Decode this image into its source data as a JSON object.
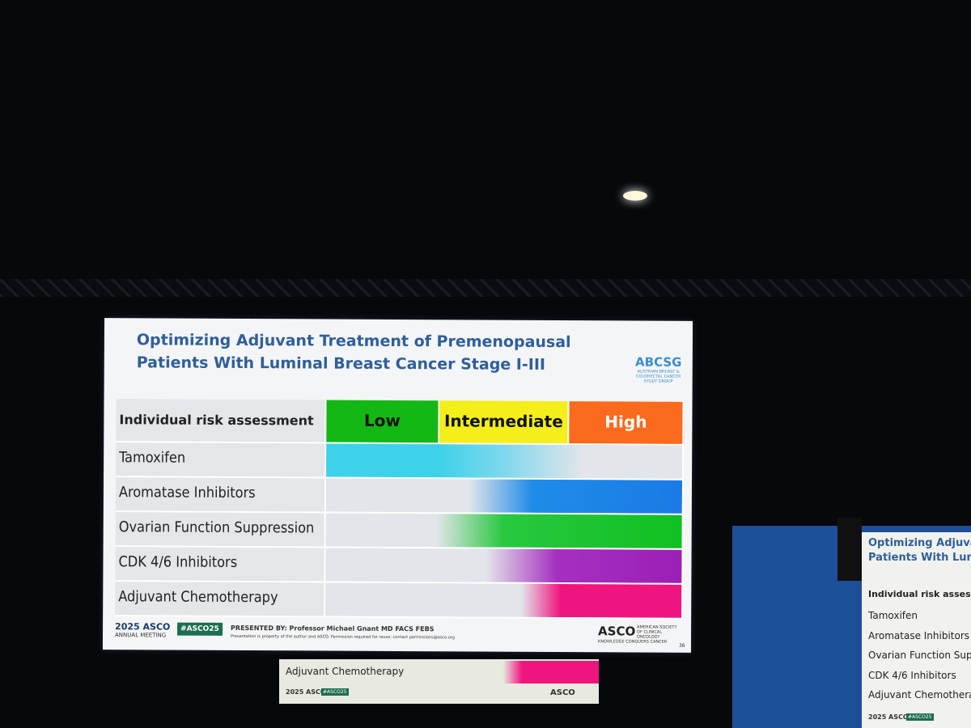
{
  "slide": {
    "title": [
      "Optimizing Adjuvant Treatment of Premenopausal",
      "Patients With Luminal Breast Cancer Stage I-III"
    ],
    "logo": "ABCSG",
    "logo_subtitle": "AUSTRIAN BREAST & COLORECTAL CANCER STUDY GROUP",
    "table": {
      "header": [
        "Individual risk assessment",
        "Low",
        "Intermediate",
        "High"
      ],
      "rows": [
        "Tamoxifen",
        "Aromatase Inhibitors",
        "Ovarian Function Suppression",
        "CDK 4/6 Inhibitors",
        "Adjuvant Chemotherapy"
      ]
    },
    "footer": {
      "meeting": "2025 ASCO",
      "meeting_sub": "ANNUAL MEETING",
      "hashtag": "#ASCO25",
      "presenter": "PRESENTED BY:  Professor Michael Gnant MD FACS FEBS",
      "notice": "Presentation is property of the author and ASCO. Permission required for reuse; contact permissions@asco.org",
      "society": "ASCO",
      "society_sub": "AMERICAN SOCIETY OF CLINICAL ONCOLOGY",
      "tagline": "KNOWLEDGE CONQUERS CANCER",
      "page": "36"
    }
  },
  "side_screen": {
    "title": [
      "Optimizing Adjuva",
      "Patients With Lum"
    ],
    "header": "Individual risk assessme",
    "rows": [
      "Tamoxifen",
      "Aromatase Inhibitors",
      "Ovarian Function Suppres",
      "CDK 4/6 Inhibitors",
      "Adjuvant Chemotherapy"
    ],
    "meeting": "2025 ASCO",
    "hashtag": "#ASCO25"
  },
  "confidence_monitor": {
    "row": "Adjuvant Chemotherapy",
    "meeting": "2025 ASCO",
    "hashtag": "#ASCO25",
    "society": "ASCO"
  }
}
